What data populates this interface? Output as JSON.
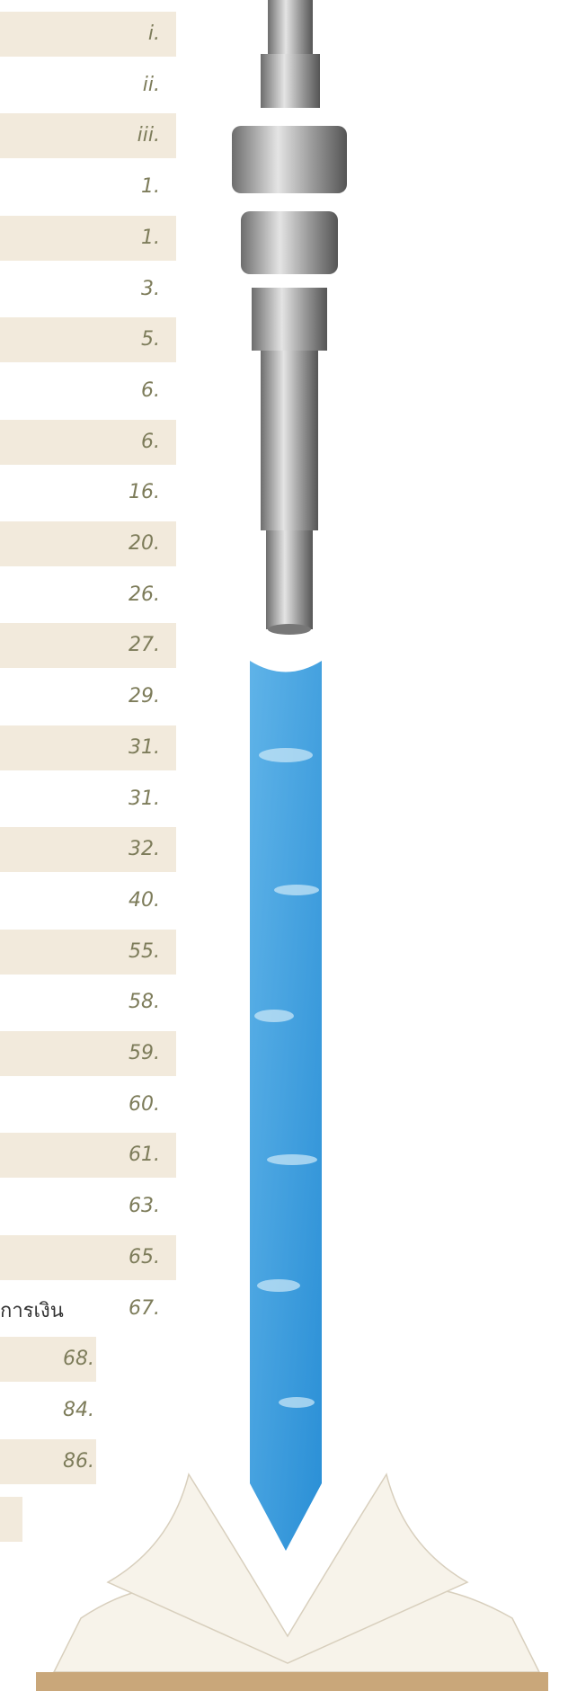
{
  "entries": [
    "i.",
    "ii.",
    "iii.",
    "1.",
    "1.",
    "3.",
    "5.",
    "6.",
    "6.",
    "16.",
    "20.",
    "26.",
    "27.",
    "29.",
    "31.",
    "31.",
    "32.",
    "40.",
    "55.",
    "58.",
    "59.",
    "60.",
    "61.",
    "63.",
    "65.",
    "67.",
    "68.",
    "84.",
    "86."
  ],
  "partial_text": "การเงิน"
}
